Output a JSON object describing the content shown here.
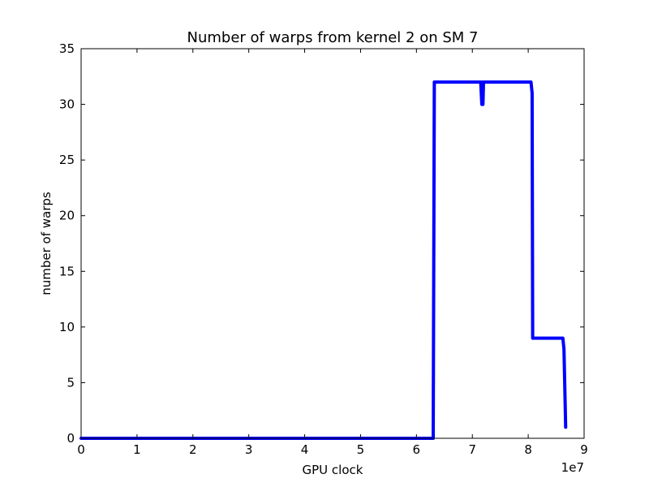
{
  "chart_data": {
    "type": "line",
    "title": "Number of warps from kernel 2 on SM 7",
    "xlabel": "GPU clock",
    "ylabel": "number of warps",
    "x_offset_label": "1e7",
    "xlim": [
      0,
      9
    ],
    "ylim": [
      0,
      35
    ],
    "x_ticks": [
      0,
      1,
      2,
      3,
      4,
      5,
      6,
      7,
      8,
      9
    ],
    "x_tick_labels": [
      "0",
      "1",
      "2",
      "3",
      "4",
      "5",
      "6",
      "7",
      "8",
      "9"
    ],
    "y_ticks": [
      0,
      5,
      10,
      15,
      20,
      25,
      30,
      35
    ],
    "y_tick_labels": [
      "0",
      "5",
      "10",
      "15",
      "20",
      "25",
      "30",
      "35"
    ],
    "grid": false,
    "series": [
      {
        "color": "#0000ff",
        "x": [
          0,
          6.3,
          6.32,
          6.35,
          7.15,
          7.17,
          7.18,
          7.19,
          7.2,
          7.22,
          8.05,
          8.07,
          8.08,
          8.62,
          8.64,
          8.67
        ],
        "y": [
          0,
          0,
          32,
          32,
          32,
          30,
          32,
          30,
          32,
          32,
          32,
          31,
          9,
          9,
          8,
          1
        ]
      }
    ]
  }
}
